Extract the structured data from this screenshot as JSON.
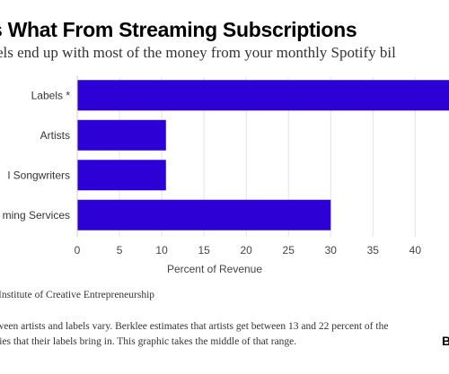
{
  "title": "s What From Streaming Subscriptions",
  "subtitle": "els end up with most of the money from your monthly Spotify bil",
  "source": "Institute of Creative Entrepreneurship",
  "note_lines": [
    "ween artists and labels vary. Berklee estimates that artists get between 13 and 22 percent of the",
    "ties that their labels bring in. This graphic takes the middle of that range."
  ],
  "logo": "B",
  "chart_data": {
    "type": "bar",
    "orientation": "horizontal",
    "categories": [
      "Labels *",
      "Artists",
      "l Songwriters",
      "ming Services"
    ],
    "values": [
      44,
      10.5,
      10.5,
      30
    ],
    "xlabel": "Percent of Revenue",
    "ylabel": "",
    "xlim": [
      0,
      44
    ],
    "xticks": [
      0,
      5,
      10,
      15,
      20,
      25,
      30,
      35,
      40
    ],
    "grid": "vertical",
    "bar_color": "#2d00d6"
  }
}
